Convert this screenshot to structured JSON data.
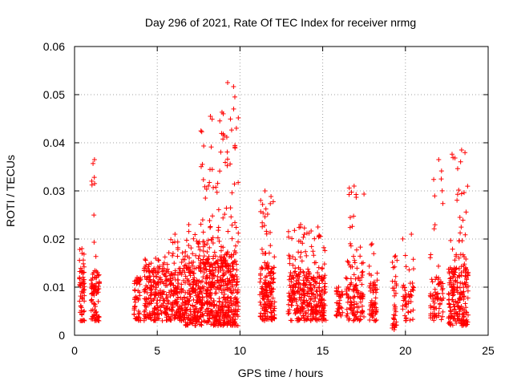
{
  "chart_data": {
    "type": "scatter",
    "title": "Day 296 of 2021, Rate Of TEC Index for receiver nrmg",
    "xlabel": "GPS time / hours",
    "ylabel": "ROTI / TECUs",
    "xlim": [
      0,
      25
    ],
    "ylim": [
      0,
      0.06
    ],
    "x_ticks": [
      0,
      5,
      10,
      15,
      20,
      25
    ],
    "x_tick_labels": [
      "0",
      "5",
      "10",
      "15",
      "20",
      "25"
    ],
    "y_ticks": [
      0,
      0.01,
      0.02,
      0.03,
      0.04,
      0.05,
      0.06
    ],
    "y_tick_labels": [
      "0",
      "0.01",
      "0.02",
      "0.03",
      "0.04",
      "0.05",
      "0.06"
    ],
    "grid": true,
    "marker": "plus",
    "color": "#ff0000",
    "clusters": [
      {
        "x_start": 0.3,
        "x_end": 0.6,
        "y_min": 0.003,
        "y_typ_max": 0.013,
        "y_peak": 0.018,
        "count": 60
      },
      {
        "x_start": 1.0,
        "x_end": 1.5,
        "y_min": 0.003,
        "y_typ_max": 0.013,
        "y_peak": 0.0365,
        "count": 90
      },
      {
        "x_start": 3.6,
        "x_end": 4.0,
        "y_min": 0.003,
        "y_typ_max": 0.011,
        "y_peak": 0.012,
        "count": 50
      },
      {
        "x_start": 4.2,
        "x_end": 5.3,
        "y_min": 0.003,
        "y_typ_max": 0.013,
        "y_peak": 0.016,
        "count": 160
      },
      {
        "x_start": 5.3,
        "x_end": 6.6,
        "y_min": 0.003,
        "y_typ_max": 0.013,
        "y_peak": 0.021,
        "count": 200
      },
      {
        "x_start": 6.6,
        "x_end": 7.6,
        "y_min": 0.002,
        "y_typ_max": 0.014,
        "y_peak": 0.023,
        "count": 200
      },
      {
        "x_start": 7.6,
        "x_end": 8.8,
        "y_min": 0.002,
        "y_typ_max": 0.016,
        "y_peak": 0.0455,
        "count": 280
      },
      {
        "x_start": 8.8,
        "x_end": 9.9,
        "y_min": 0.002,
        "y_typ_max": 0.017,
        "y_peak": 0.0525,
        "count": 280
      },
      {
        "x_start": 11.2,
        "x_end": 12.1,
        "y_min": 0.003,
        "y_typ_max": 0.014,
        "y_peak": 0.03,
        "count": 180
      },
      {
        "x_start": 12.9,
        "x_end": 14.2,
        "y_min": 0.003,
        "y_typ_max": 0.013,
        "y_peak": 0.023,
        "count": 200
      },
      {
        "x_start": 14.2,
        "x_end": 15.2,
        "y_min": 0.003,
        "y_typ_max": 0.012,
        "y_peak": 0.0225,
        "count": 150
      },
      {
        "x_start": 15.8,
        "x_end": 16.2,
        "y_min": 0.004,
        "y_typ_max": 0.009,
        "y_peak": 0.01,
        "count": 35
      },
      {
        "x_start": 16.4,
        "x_end": 17.5,
        "y_min": 0.003,
        "y_typ_max": 0.013,
        "y_peak": 0.031,
        "count": 130
      },
      {
        "x_start": 17.8,
        "x_end": 18.3,
        "y_min": 0.003,
        "y_typ_max": 0.011,
        "y_peak": 0.019,
        "count": 60
      },
      {
        "x_start": 19.2,
        "x_end": 19.5,
        "y_min": 0.001,
        "y_typ_max": 0.011,
        "y_peak": 0.0165,
        "count": 35
      },
      {
        "x_start": 19.8,
        "x_end": 20.6,
        "y_min": 0.003,
        "y_typ_max": 0.011,
        "y_peak": 0.021,
        "count": 50
      },
      {
        "x_start": 21.5,
        "x_end": 22.3,
        "y_min": 0.003,
        "y_typ_max": 0.012,
        "y_peak": 0.0365,
        "count": 80
      },
      {
        "x_start": 22.6,
        "x_end": 23.8,
        "y_min": 0.002,
        "y_typ_max": 0.014,
        "y_peak": 0.0385,
        "count": 230
      }
    ]
  }
}
